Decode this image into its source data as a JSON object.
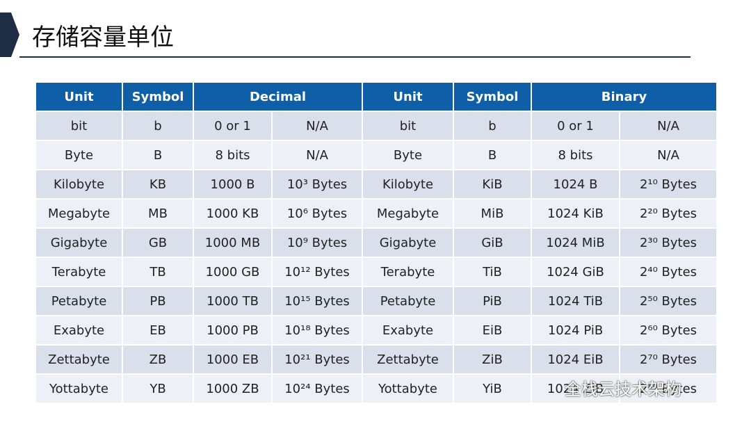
{
  "header": {
    "title": "存储容量单位"
  },
  "table": {
    "columns": [
      "Unit",
      "Symbol",
      "Decimal",
      "Unit",
      "Symbol",
      "Binary"
    ],
    "rows": [
      [
        "bit",
        "b",
        "0 or 1",
        "N/A",
        "bit",
        "b",
        "0 or 1",
        "N/A"
      ],
      [
        "Byte",
        "B",
        "8 bits",
        "N/A",
        "Byte",
        "B",
        "8 bits",
        "N/A"
      ],
      [
        "Kilobyte",
        "KB",
        "1000 B",
        "10³ Bytes",
        "Kilobyte",
        "KiB",
        "1024 B",
        "2¹⁰ Bytes"
      ],
      [
        "Megabyte",
        "MB",
        "1000 KB",
        "10⁶ Bytes",
        "Megabyte",
        "MiB",
        "1024 KiB",
        "2²⁰ Bytes"
      ],
      [
        "Gigabyte",
        "GB",
        "1000 MB",
        "10⁹ Bytes",
        "Gigabyte",
        "GiB",
        "1024 MiB",
        "2³⁰ Bytes"
      ],
      [
        "Terabyte",
        "TB",
        "1000 GB",
        "10¹² Bytes",
        "Terabyte",
        "TiB",
        "1024 GiB",
        "2⁴⁰ Bytes"
      ],
      [
        "Petabyte",
        "PB",
        "1000 TB",
        "10¹⁵ Bytes",
        "Petabyte",
        "PiB",
        "1024 TiB",
        "2⁵⁰ Bytes"
      ],
      [
        "Exabyte",
        "EB",
        "1000 PB",
        "10¹⁸ Bytes",
        "Exabyte",
        "EiB",
        "1024 PiB",
        "2⁶⁰ Bytes"
      ],
      [
        "Zettabyte",
        "ZB",
        "1000 EB",
        "10²¹ Bytes",
        "Zettabyte",
        "ZiB",
        "1024 EiB",
        "2⁷⁰ Bytes"
      ],
      [
        "Yottabyte",
        "YB",
        "1000 ZB",
        "10²⁴ Bytes",
        "Yottabyte",
        "YiB",
        "1024 ZiB",
        "2⁸⁰ Bytes"
      ]
    ]
  },
  "watermark": "全栈云技术架构"
}
